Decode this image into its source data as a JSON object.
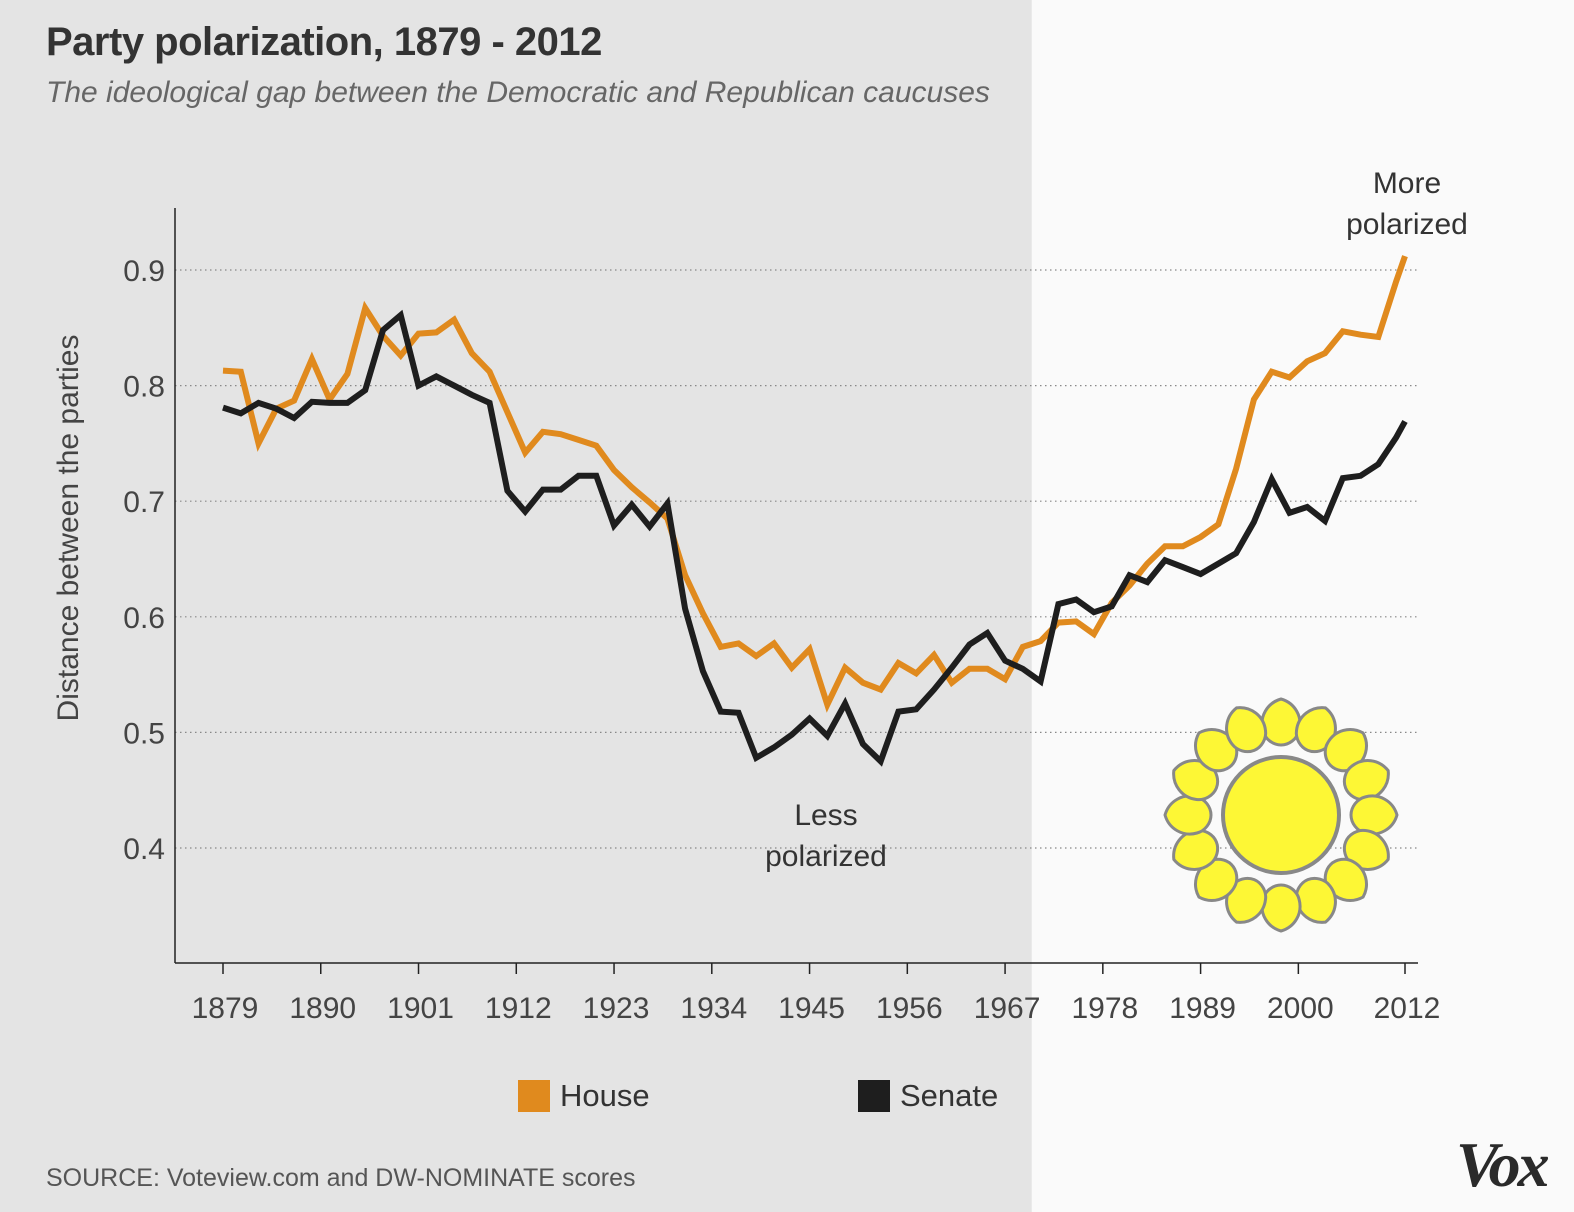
{
  "colors": {
    "house": "#e08a1e",
    "senate": "#1e1e1e",
    "shade": "#e4e4e4",
    "background": "#fafafa",
    "sun_fill": "#fdf735",
    "sun_stroke": "#888888"
  },
  "logo": "Vox",
  "sun_icon": "sun-icon",
  "chart_data": {
    "type": "line",
    "title": "Party polarization, 1879 - 2012",
    "subtitle": "The ideological gap between the Democratic and Republican caucuses",
    "ylabel": "Distance between the parties",
    "xlabel": "",
    "source": "SOURCE: Voteview.com and DW-NOMINATE scores",
    "xlim": [
      1875,
      2016
    ],
    "ylim": [
      0.3,
      0.955
    ],
    "yticks": [
      "0.4",
      "0.5",
      "0.6",
      "0.7",
      "0.8",
      "0.9"
    ],
    "xticks": [
      "1879",
      "1890",
      "1901",
      "1912",
      "1923",
      "1934",
      "1945",
      "1956",
      "1967",
      "1978",
      "1989",
      "2000",
      "2012"
    ],
    "grid": "horizontal dotted",
    "legend_position": "bottom",
    "shaded_region": [
      1875,
      1970
    ],
    "annotations": [
      {
        "text_lines": [
          "Less",
          "polarized"
        ]
      },
      {
        "text_lines": [
          "More",
          "polarized"
        ]
      }
    ],
    "series": [
      {
        "name": "House",
        "x": [
          1879,
          1881,
          1883,
          1885,
          1887,
          1889,
          1891,
          1893,
          1895,
          1897,
          1899,
          1901,
          1903,
          1905,
          1907,
          1909,
          1911,
          1913,
          1915,
          1917,
          1919,
          1921,
          1923,
          1925,
          1927,
          1929,
          1931,
          1933,
          1935,
          1937,
          1939,
          1941,
          1943,
          1945,
          1947,
          1949,
          1951,
          1953,
          1955,
          1957,
          1959,
          1961,
          1963,
          1965,
          1967,
          1969,
          1971,
          1973,
          1975,
          1977,
          1979,
          1981,
          1983,
          1985,
          1987,
          1989,
          1991,
          1993,
          1995,
          1997,
          1999,
          2001,
          2003,
          2005,
          2007,
          2009,
          2011,
          2012
        ],
        "y": [
          0.813,
          0.812,
          0.75,
          0.78,
          0.787,
          0.823,
          0.788,
          0.81,
          0.867,
          0.843,
          0.826,
          0.845,
          0.846,
          0.857,
          0.828,
          0.812,
          0.777,
          0.742,
          0.76,
          0.758,
          0.753,
          0.748,
          0.727,
          0.712,
          0.699,
          0.685,
          0.636,
          0.603,
          0.574,
          0.577,
          0.566,
          0.577,
          0.556,
          0.572,
          0.524,
          0.556,
          0.543,
          0.537,
          0.56,
          0.551,
          0.567,
          0.543,
          0.555,
          0.555,
          0.546,
          0.574,
          0.579,
          0.595,
          0.596,
          0.585,
          0.612,
          0.627,
          0.646,
          0.661,
          0.661,
          0.669,
          0.68,
          0.728,
          0.788,
          0.812,
          0.807,
          0.821,
          0.828,
          0.847,
          0.844,
          0.842,
          0.89,
          0.912
        ]
      },
      {
        "name": "Senate",
        "x": [
          1879,
          1881,
          1883,
          1885,
          1887,
          1889,
          1891,
          1893,
          1895,
          1897,
          1899,
          1901,
          1903,
          1905,
          1907,
          1909,
          1911,
          1913,
          1915,
          1917,
          1919,
          1921,
          1923,
          1925,
          1927,
          1929,
          1931,
          1933,
          1935,
          1937,
          1939,
          1941,
          1943,
          1945,
          1947,
          1949,
          1951,
          1953,
          1955,
          1957,
          1959,
          1961,
          1963,
          1965,
          1967,
          1969,
          1971,
          1973,
          1975,
          1977,
          1979,
          1981,
          1983,
          1985,
          1987,
          1989,
          1991,
          1993,
          1995,
          1997,
          1999,
          2001,
          2003,
          2005,
          2007,
          2009,
          2011,
          2012
        ],
        "y": [
          0.781,
          0.776,
          0.785,
          0.78,
          0.772,
          0.786,
          0.785,
          0.785,
          0.796,
          0.848,
          0.861,
          0.8,
          0.808,
          0.8,
          0.792,
          0.785,
          0.709,
          0.691,
          0.71,
          0.71,
          0.722,
          0.722,
          0.679,
          0.697,
          0.678,
          0.698,
          0.607,
          0.553,
          0.518,
          0.517,
          0.478,
          0.487,
          0.498,
          0.512,
          0.497,
          0.525,
          0.49,
          0.475,
          0.518,
          0.52,
          0.537,
          0.556,
          0.576,
          0.586,
          0.562,
          0.555,
          0.544,
          0.611,
          0.615,
          0.604,
          0.609,
          0.636,
          0.63,
          0.649,
          0.643,
          0.637,
          0.646,
          0.655,
          0.682,
          0.719,
          0.69,
          0.695,
          0.683,
          0.72,
          0.722,
          0.732,
          0.755,
          0.769
        ]
      }
    ]
  }
}
